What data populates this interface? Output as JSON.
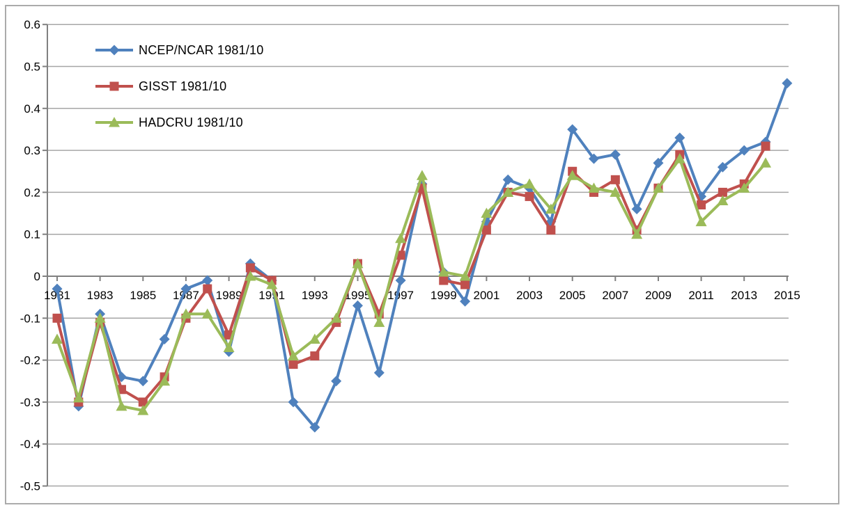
{
  "chart_data": {
    "type": "line",
    "title": "",
    "xlabel": "",
    "ylabel": "",
    "grid": true,
    "legend_position": "top-left-inside",
    "ylim": [
      -0.5,
      0.6
    ],
    "y_step": 0.1,
    "y_tick_labels": [
      "0.6",
      "0.5",
      "0.4",
      "0.3",
      "0.2",
      "0.1",
      "0",
      "-0.1",
      "-0.2",
      "-0.3",
      "-0.4",
      "-0.5"
    ],
    "x": [
      1981,
      1982,
      1983,
      1984,
      1985,
      1986,
      1987,
      1988,
      1989,
      1990,
      1991,
      1992,
      1993,
      1994,
      1995,
      1996,
      1997,
      1998,
      1999,
      2000,
      2001,
      2002,
      2003,
      2004,
      2005,
      2006,
      2007,
      2008,
      2009,
      2010,
      2011,
      2012,
      2013,
      2014,
      2015
    ],
    "x_tick_labels": [
      "1981",
      "1983",
      "1985",
      "1987",
      "1989",
      "1991",
      "1993",
      "1995",
      "1997",
      "1999",
      "2001",
      "2003",
      "2005",
      "2007",
      "2009",
      "2011",
      "2013",
      "2015"
    ],
    "series": [
      {
        "key": "ncep-ncar",
        "name": "NCEP/NCAR 1981/10",
        "color": "#4f81bd",
        "marker": "diamond",
        "values": [
          -0.03,
          -0.31,
          -0.09,
          -0.24,
          -0.25,
          -0.15,
          -0.03,
          -0.01,
          -0.18,
          0.03,
          -0.01,
          -0.3,
          -0.36,
          -0.25,
          -0.07,
          -0.23,
          -0.01,
          0.22,
          0.01,
          -0.06,
          0.13,
          0.23,
          0.21,
          0.13,
          0.35,
          0.28,
          0.29,
          0.16,
          0.27,
          0.33,
          0.19,
          0.26,
          0.3,
          0.32,
          0.46
        ]
      },
      {
        "key": "gisst",
        "name": "GISST 1981/10",
        "color": "#c0504d",
        "marker": "square",
        "values": [
          -0.1,
          -0.3,
          -0.11,
          -0.27,
          -0.3,
          -0.24,
          -0.1,
          -0.03,
          -0.14,
          0.02,
          -0.01,
          -0.21,
          -0.19,
          -0.11,
          0.03,
          -0.09,
          0.05,
          0.21,
          -0.01,
          -0.02,
          0.11,
          0.2,
          0.19,
          0.11,
          0.25,
          0.2,
          0.23,
          0.11,
          0.21,
          0.29,
          0.17,
          0.2,
          0.22,
          0.31,
          null
        ]
      },
      {
        "key": "hadcru",
        "name": "HADCRU 1981/10",
        "color": "#9bbb59",
        "marker": "triangle",
        "values": [
          -0.15,
          -0.29,
          -0.1,
          -0.31,
          -0.32,
          -0.25,
          -0.09,
          -0.09,
          -0.17,
          0.0,
          -0.02,
          -0.19,
          -0.15,
          -0.1,
          0.03,
          -0.11,
          0.09,
          0.24,
          0.01,
          0.0,
          0.15,
          0.2,
          0.22,
          0.16,
          0.24,
          0.21,
          0.2,
          0.1,
          0.21,
          0.28,
          0.13,
          0.18,
          0.21,
          0.27,
          null
        ]
      }
    ],
    "axis_color": "#808080",
    "gridline_color": "#a6a6a6",
    "text_color": "#000000"
  }
}
